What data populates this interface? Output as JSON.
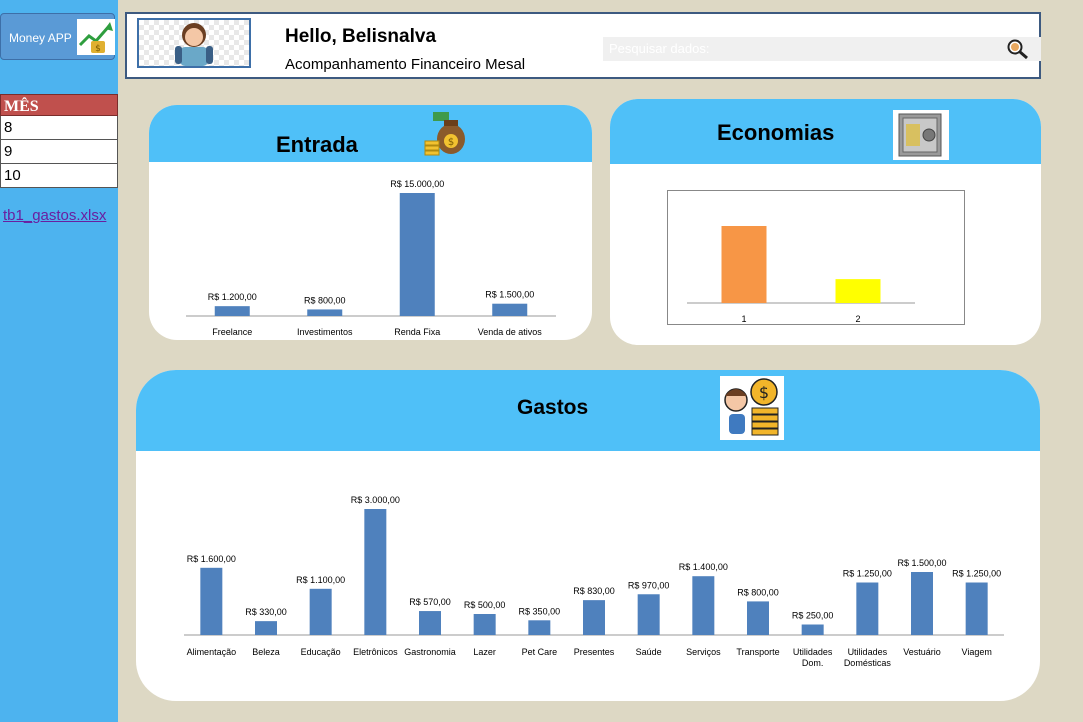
{
  "sidebar": {
    "app_button_label": "Money APP",
    "month_header": "MÊS",
    "months": [
      "8",
      "9",
      "10"
    ],
    "file_link": "tb1_gastos.xlsx"
  },
  "header": {
    "greeting": "Hello, Belisnalva",
    "subtitle": "Acompanhamento Financeiro Mesal",
    "search_placeholder": "Pesquisar dados:"
  },
  "colors": {
    "accent": "#4fc0f8",
    "sidebar": "#4db3ef",
    "bar": "#4f81bd",
    "month_header": "#c0504d",
    "eco_bar_1": "#f79646",
    "eco_bar_2": "#ffff00",
    "background": "#ddd8c4"
  },
  "chart_data": [
    {
      "id": "entrada",
      "type": "bar",
      "title": "Entrada",
      "categories": [
        "Freelance",
        "Investimentos",
        "Renda Fixa",
        "Venda de ativos"
      ],
      "values": [
        1200,
        800,
        15000,
        1500
      ],
      "labels": [
        "R$ 1.200,00",
        "R$ 800,00",
        "R$ 15.000,00",
        "R$ 1.500,00"
      ],
      "ylim": [
        0,
        15000
      ]
    },
    {
      "id": "economias",
      "type": "bar",
      "title": "Economias",
      "categories": [
        "1",
        "2"
      ],
      "values": [
        100,
        31
      ],
      "colors": [
        "#f79646",
        "#ffff00"
      ],
      "ylim": [
        0,
        100
      ]
    },
    {
      "id": "gastos",
      "type": "bar",
      "title": "Gastos",
      "categories": [
        "Alimentação",
        "Beleza",
        "Educação",
        "Eletrônicos",
        "Gastronomia",
        "Lazer",
        "Pet Care",
        "Presentes",
        "Saúde",
        "Serviços",
        "Transporte",
        "Utilidades Dom.",
        "Utilidades Domésticas",
        "Vestuário",
        "Viagem"
      ],
      "values": [
        1600,
        330,
        1100,
        3000,
        570,
        500,
        350,
        830,
        970,
        1400,
        800,
        250,
        1250,
        1500,
        1250
      ],
      "labels": [
        "R$ 1.600,00",
        "R$ 330,00",
        "R$ 1.100,00",
        "R$ 3.000,00",
        "R$ 570,00",
        "R$ 500,00",
        "R$ 350,00",
        "R$ 830,00",
        "R$ 970,00",
        "R$ 1.400,00",
        "R$ 800,00",
        "R$ 250,00",
        "R$ 1.250,00",
        "R$ 1.500,00",
        "R$ 1.250,00"
      ],
      "ylim": [
        0,
        3000
      ]
    }
  ]
}
